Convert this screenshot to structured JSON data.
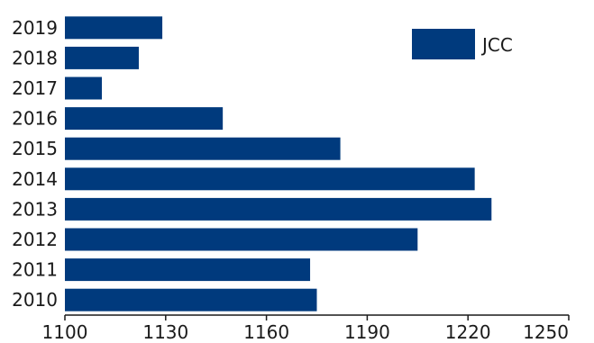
{
  "chart_data": {
    "type": "bar",
    "orientation": "horizontal",
    "categories": [
      "2010",
      "2011",
      "2012",
      "2013",
      "2014",
      "2015",
      "2016",
      "2017",
      "2018",
      "2019"
    ],
    "series": [
      {
        "name": "JCC",
        "values": [
          1175,
          1173,
          1205,
          1227,
          1222,
          1182,
          1147,
          1111,
          1122,
          1129
        ]
      }
    ],
    "xticks": [
      "1100",
      "1130",
      "1160",
      "1190",
      "1220",
      "1250"
    ],
    "xlim": [
      1100,
      1250
    ],
    "title": "",
    "xlabel": "",
    "ylabel": "",
    "grid": false,
    "legend_position": "top-right",
    "bar_color": "#003a7d"
  }
}
